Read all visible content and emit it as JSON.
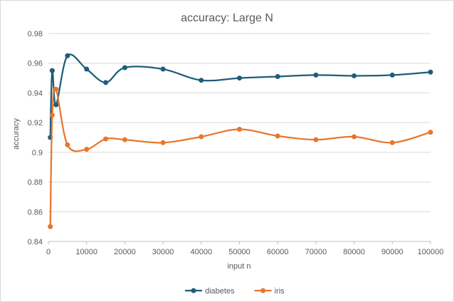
{
  "chart_data": {
    "type": "line",
    "title": "accuracy: Large N",
    "xlabel": "input n",
    "ylabel": "accuracy",
    "xlim": [
      0,
      100000
    ],
    "ylim": [
      0.84,
      0.98
    ],
    "x_ticks": [
      0,
      10000,
      20000,
      30000,
      40000,
      50000,
      60000,
      70000,
      80000,
      90000,
      100000
    ],
    "y_ticks": [
      0.84,
      0.86,
      0.88,
      0.9,
      0.92,
      0.94,
      0.96,
      0.98
    ],
    "grid": "horizontal",
    "smooth": true,
    "legend_position": "bottom",
    "series": [
      {
        "name": "diabetes",
        "color": "#1f5c7a",
        "x": [
          500,
          1000,
          2000,
          5000,
          10000,
          15000,
          20000,
          30000,
          40000,
          50000,
          60000,
          70000,
          80000,
          90000,
          100000
        ],
        "y": [
          0.91,
          0.955,
          0.932,
          0.965,
          0.956,
          0.947,
          0.957,
          0.956,
          0.9485,
          0.95,
          0.951,
          0.952,
          0.9515,
          0.952,
          0.954
        ]
      },
      {
        "name": "iris",
        "color": "#e8762b",
        "x": [
          500,
          1000,
          2000,
          5000,
          10000,
          15000,
          20000,
          30000,
          40000,
          50000,
          60000,
          70000,
          80000,
          90000,
          100000
        ],
        "y": [
          0.85,
          0.925,
          0.9425,
          0.905,
          0.902,
          0.909,
          0.9085,
          0.9065,
          0.9105,
          0.9155,
          0.911,
          0.9085,
          0.9105,
          0.9065,
          0.9135
        ]
      }
    ]
  }
}
